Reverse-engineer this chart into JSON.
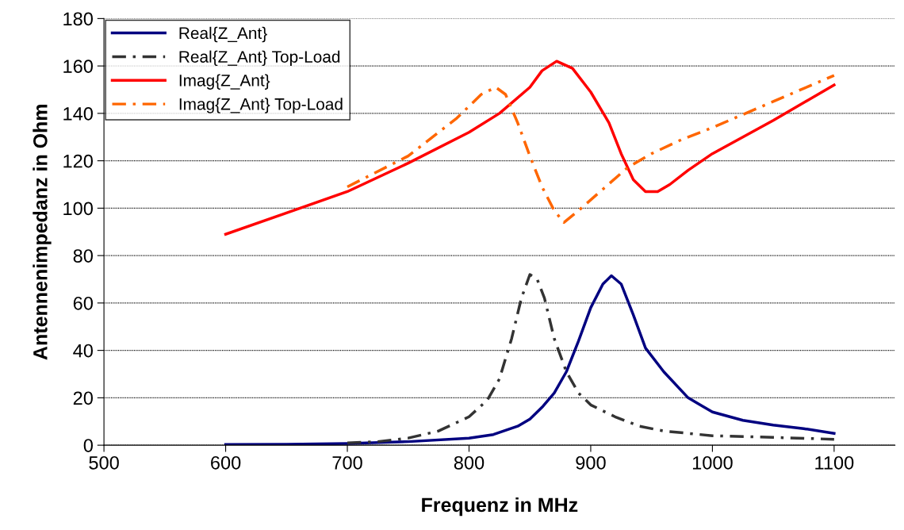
{
  "chart_data": {
    "type": "line",
    "xlabel": "Frequenz in MHz",
    "ylabel": "Antennenimpedanz in Ohm",
    "xlim": [
      500,
      1150
    ],
    "xticks": [
      500,
      600,
      700,
      800,
      900,
      1000,
      1100
    ],
    "ylim": [
      0,
      180
    ],
    "yticks": [
      0,
      20,
      40,
      60,
      80,
      100,
      120,
      140,
      160,
      180
    ],
    "grid": "y",
    "legend": "top left",
    "marker": "none",
    "series": [
      {
        "name": "Real{Z_Ant}",
        "color": "#000080",
        "line_style": "solid",
        "x": [
          600,
          650,
          700,
          750,
          800,
          820,
          840,
          850,
          860,
          870,
          880,
          890,
          900,
          910,
          917,
          925,
          935,
          945,
          960,
          980,
          1000,
          1025,
          1050,
          1075,
          1100
        ],
        "values": [
          0.3,
          0.4,
          0.7,
          1.5,
          3,
          4.5,
          8,
          11,
          16,
          22,
          31,
          44,
          58,
          68,
          71.5,
          68,
          55,
          41,
          31,
          20,
          14,
          10.5,
          8.5,
          7,
          5
        ]
      },
      {
        "name": "Real{Z_Ant} Top-Load",
        "color": "#333333",
        "line_style": "dashdot",
        "x": [
          700,
          725,
          750,
          775,
          800,
          815,
          825,
          835,
          843,
          850,
          856,
          862,
          870,
          880,
          890,
          900,
          920,
          940,
          960,
          1000,
          1050,
          1100
        ],
        "values": [
          1,
          1.5,
          3,
          6,
          12,
          19,
          28,
          45,
          62,
          72,
          70,
          62,
          45,
          31,
          22,
          17,
          12,
          8,
          6,
          4,
          3.3,
          2.5
        ]
      },
      {
        "name": "Imag{Z_Ant}",
        "color": "#ff0000",
        "line_style": "solid",
        "x": [
          600,
          650,
          700,
          750,
          800,
          825,
          850,
          860,
          872,
          885,
          900,
          915,
          925,
          935,
          945,
          955,
          965,
          980,
          1000,
          1050,
          1100
        ],
        "values": [
          89,
          98,
          107,
          119,
          132,
          140,
          151,
          158,
          162,
          159,
          149,
          136,
          123,
          112,
          107,
          107,
          110,
          116,
          123,
          137,
          152
        ]
      },
      {
        "name": "Imag{Z_Ant} Top-Load",
        "color": "#ff6600",
        "line_style": "dashdot",
        "x": [
          700,
          750,
          790,
          810,
          822,
          830,
          840,
          850,
          860,
          870,
          878,
          890,
          910,
          930,
          950,
          975,
          1000,
          1050,
          1100
        ],
        "values": [
          109,
          122,
          138,
          148,
          151,
          148,
          136,
          122,
          109,
          99,
          94,
          99,
          108,
          117,
          123,
          129,
          134,
          145,
          156
        ]
      }
    ]
  }
}
